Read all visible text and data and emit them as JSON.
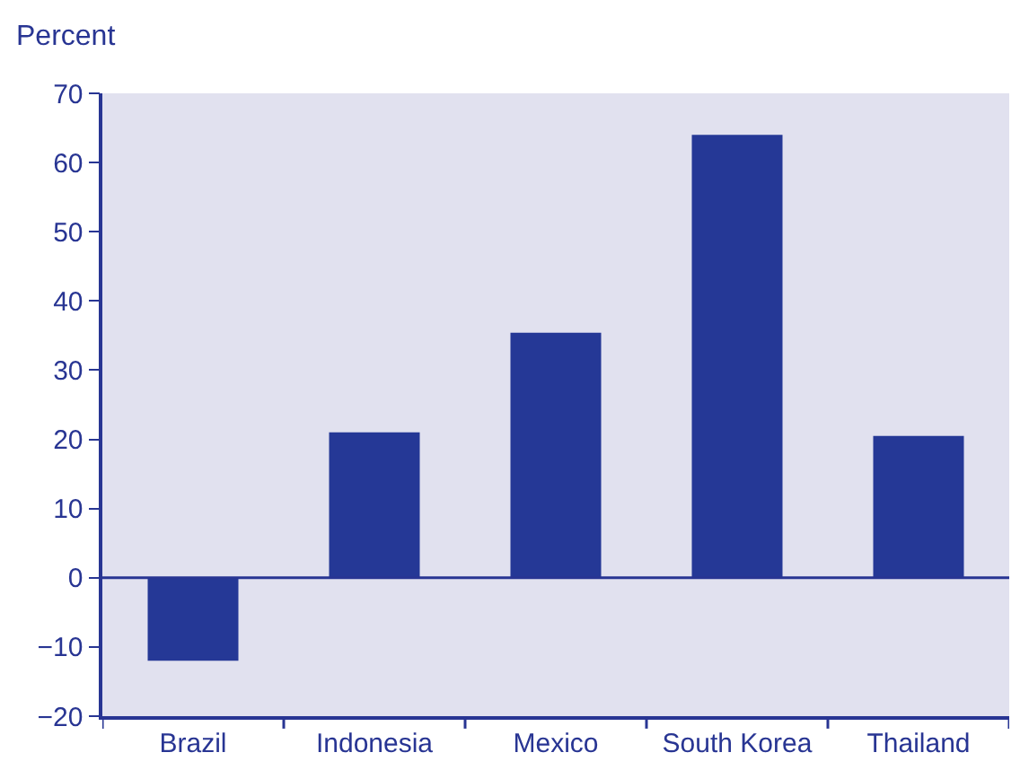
{
  "chart_data": {
    "type": "bar",
    "ylabel": "Percent",
    "categories": [
      "Brazil",
      "Indonesia",
      "Mexico",
      "South Korea",
      "Thailand"
    ],
    "values": [
      -12,
      21,
      35.4,
      64,
      20.5
    ],
    "color": "#253896",
    "ylim": [
      -20,
      70
    ],
    "yticks": [
      {
        "value": -20,
        "label": "−20"
      },
      {
        "value": -10,
        "label": "−10"
      },
      0,
      10,
      20,
      30,
      40,
      50,
      60,
      70
    ],
    "ref_lines": [
      {
        "axis": "y",
        "value": 0,
        "color": "#283593",
        "line_style": "solid"
      }
    ],
    "grid": false,
    "legend": false
  }
}
